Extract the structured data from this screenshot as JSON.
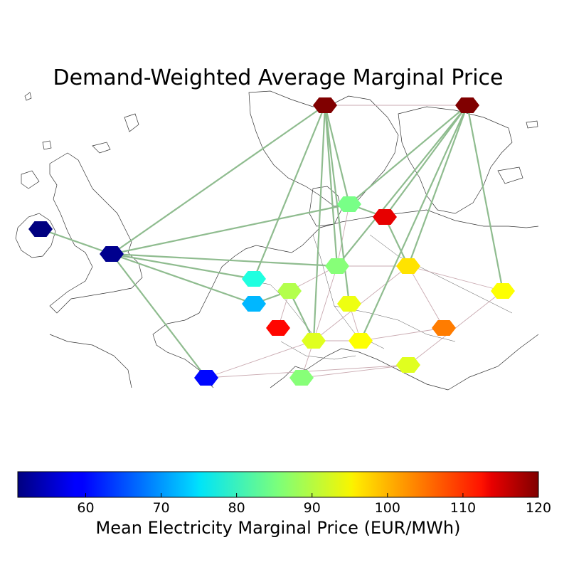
{
  "title": "Demand-Weighted Average Marginal Price",
  "colorbar": {
    "label": "Mean Electricity Marginal Price (EUR/MWh)",
    "min": 51,
    "max": 120,
    "ticks": [
      "60",
      "70",
      "80",
      "90",
      "100",
      "110",
      "120"
    ],
    "colormap": "jet"
  },
  "colors": {
    "dc_link": "#8fbc8f",
    "ac_line": "#c9a9b0",
    "coastline": "#333333"
  },
  "nodes": [
    {
      "id": "IE",
      "price": 51
    },
    {
      "id": "GB",
      "price": 52
    },
    {
      "id": "NO",
      "price": 120
    },
    {
      "id": "FI",
      "price": 120
    },
    {
      "id": "DK",
      "price": 85
    },
    {
      "id": "SE-S",
      "price": 113
    },
    {
      "id": "NL",
      "price": 79
    },
    {
      "id": "BE",
      "price": 72
    },
    {
      "id": "LU",
      "price": 89
    },
    {
      "id": "DE",
      "price": 86
    },
    {
      "id": "PL",
      "price": 96
    },
    {
      "id": "LT",
      "price": 94
    },
    {
      "id": "CZ",
      "price": 93
    },
    {
      "id": "FR",
      "price": 111
    },
    {
      "id": "CH",
      "price": 92
    },
    {
      "id": "AT",
      "price": 94
    },
    {
      "id": "HU",
      "price": 103
    },
    {
      "id": "SI",
      "price": 92
    },
    {
      "id": "IT",
      "price": 86
    },
    {
      "id": "ES",
      "price": 60
    }
  ]
}
